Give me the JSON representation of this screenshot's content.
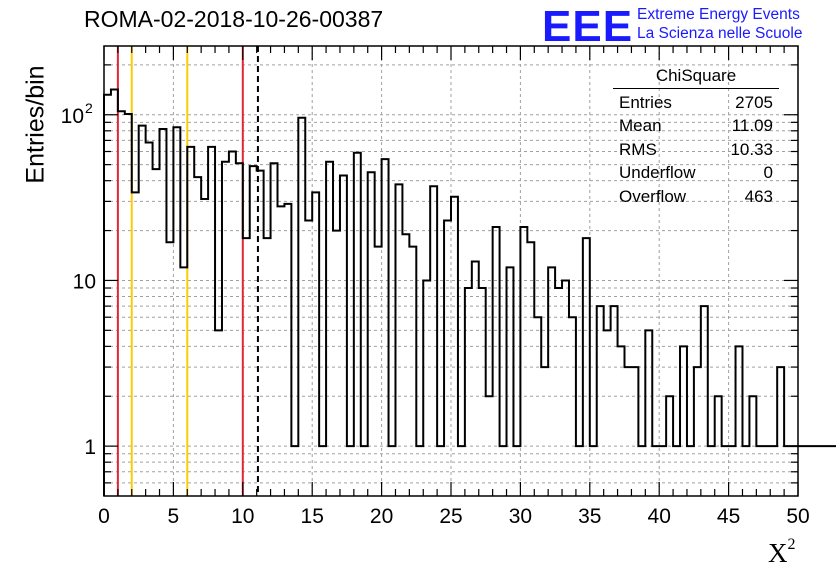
{
  "title": "ROMA-02-2018-10-26-00387",
  "logo": {
    "letters": "EEE",
    "line1": "Extreme Energy Events",
    "line2": "La Scienza nelle Scuole",
    "color": "#1a1aff"
  },
  "stats": {
    "title": "ChiSquare",
    "rows": [
      {
        "label": "Entries",
        "value": "2705"
      },
      {
        "label": "Mean",
        "value": "11.09"
      },
      {
        "label": "RMS",
        "value": "10.33"
      },
      {
        "label": "Underflow",
        "value": "0"
      },
      {
        "label": "Overflow",
        "value": "463"
      }
    ]
  },
  "chart_data": {
    "type": "histogram",
    "title": "ROMA-02-2018-10-26-00387",
    "xlabel": "X",
    "xlabel_superscript": "2",
    "ylabel": "Entries/bin",
    "xlim": [
      0,
      50
    ],
    "ylim": [
      0.5,
      260
    ],
    "yscale": "log",
    "grid": true,
    "bin_width": 0.5,
    "x_ticks": [
      "0",
      "5",
      "10",
      "15",
      "20",
      "25",
      "30",
      "35",
      "40",
      "45",
      "50"
    ],
    "y_ticks": [
      {
        "value": 1,
        "label": "1"
      },
      {
        "value": 10,
        "label": "10"
      },
      {
        "value": 100,
        "label": "10",
        "exp": "2"
      }
    ],
    "values": [
      132,
      142,
      105,
      101,
      34,
      86,
      68,
      47,
      82,
      17,
      84,
      12,
      64,
      42,
      31,
      64,
      5,
      52,
      60,
      51,
      18,
      49,
      46,
      18,
      51,
      28,
      29,
      1,
      96,
      23,
      34,
      1,
      52,
      20,
      43,
      1,
      59,
      1,
      45,
      16,
      54,
      1,
      38,
      19,
      16,
      1,
      10,
      37,
      1,
      23,
      32,
      1,
      9,
      13,
      9,
      2,
      21,
      1,
      12,
      1,
      21,
      17,
      6,
      3,
      12,
      9,
      10,
      6,
      1,
      18,
      1,
      7,
      5,
      7,
      4,
      3,
      3,
      1,
      5,
      1,
      1,
      2,
      1,
      4,
      1,
      3,
      7,
      1,
      2,
      1,
      1,
      4,
      1,
      2,
      1,
      1,
      1,
      3,
      1,
      1,
      1,
      1,
      1,
      1,
      1,
      1
    ],
    "vertical_lines": [
      {
        "x": 1,
        "color": "#e32636",
        "style": "solid"
      },
      {
        "x": 2,
        "color": "#ffcc00",
        "style": "solid"
      },
      {
        "x": 6,
        "color": "#ffcc00",
        "style": "solid"
      },
      {
        "x": 10,
        "color": "#e32636",
        "style": "solid"
      },
      {
        "x": 11.09,
        "color": "#000000",
        "style": "dashed"
      }
    ]
  }
}
